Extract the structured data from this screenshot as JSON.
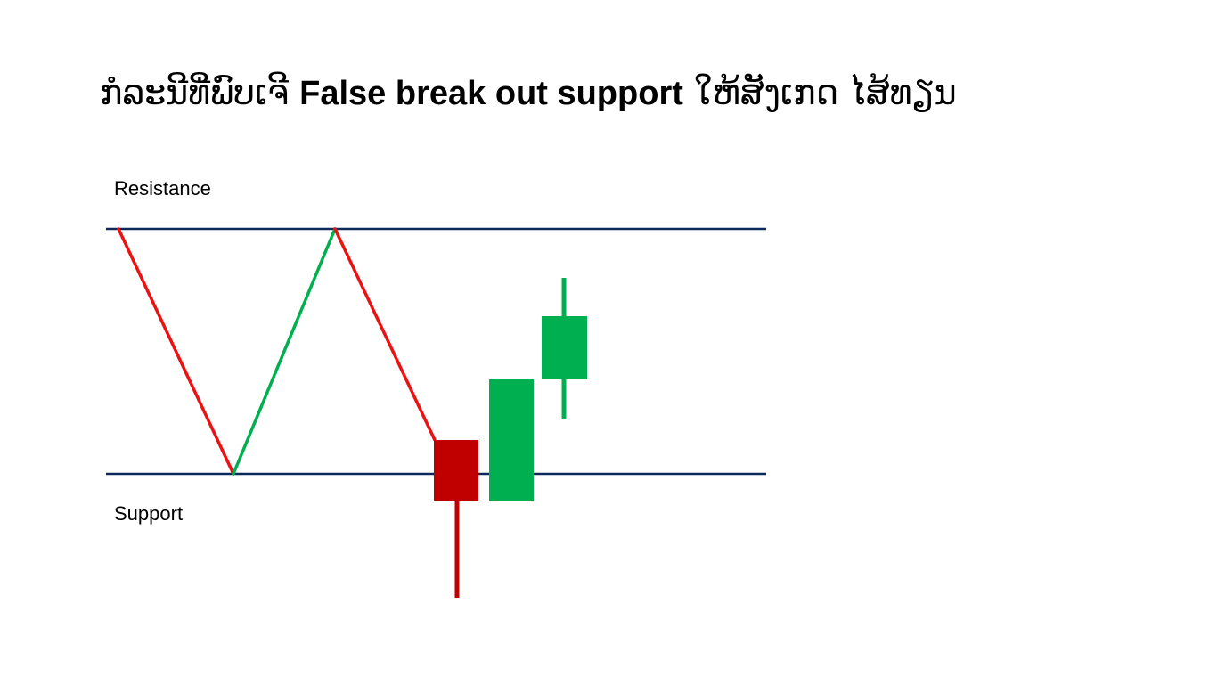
{
  "slide": {
    "title_pre": "ກໍລະນີທີ່ພົບເຈີ ",
    "title_strong": "False break out support",
    "title_post": " ໃຫ້ສັງເກດ ໄສ້ທຽນ"
  },
  "levels": {
    "resistance_label": "Resistance",
    "support_label": "Support"
  },
  "colors": {
    "level_line": "#0b2a5b",
    "down_move": "#ee1111",
    "up_move": "#00b050",
    "bear_candle": "#c00000",
    "bull_candle": "#00b050"
  }
}
